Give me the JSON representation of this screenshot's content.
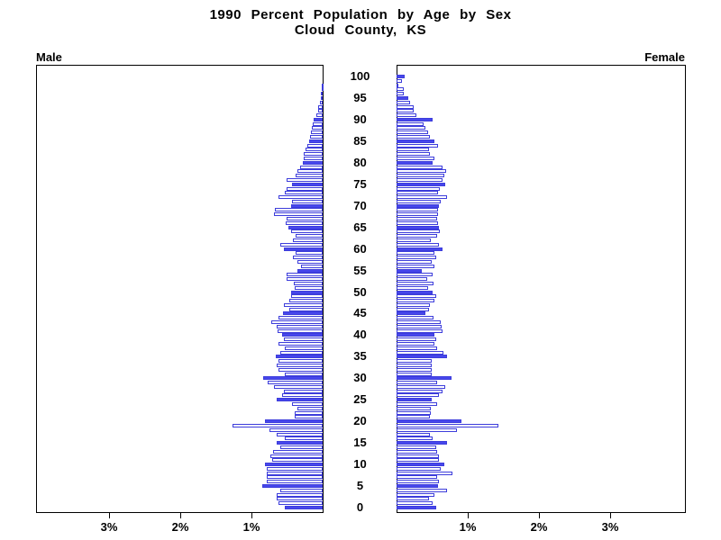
{
  "title": {
    "line1": "1990 Percent Population by Age by Sex",
    "line2": "Cloud County, KS"
  },
  "panels": {
    "male_label": "Male",
    "female_label": "Female"
  },
  "colors": {
    "bar_fill_blue": "#4747ec",
    "bar_outline_blue": "#3d3ddb",
    "axis_black": "#000000",
    "background": "#ffffff"
  },
  "chart_data": {
    "type": "bar",
    "subtype": "population_pyramid",
    "title": "1990 Percent Population by Age by Sex",
    "subtitle": "Cloud County, KS",
    "unit": "percent of total population",
    "left_series_name": "Male",
    "right_series_name": "Female",
    "age_min": 0,
    "age_max": 100,
    "age_tick_interval": 5,
    "age_tick_labels_top_to_bottom": [
      "100",
      "95",
      "90",
      "85",
      "80",
      "75",
      "70",
      "65",
      "60",
      "55",
      "50",
      "45",
      "40",
      "35",
      "30",
      "25",
      "20",
      "15",
      "10",
      "5",
      "0"
    ],
    "x_axis": {
      "male_tick_labels_left_to_right": [
        "3%",
        "2%",
        "1%"
      ],
      "female_tick_labels_left_to_right": [
        "1%",
        "2%",
        "3%"
      ],
      "tick_values_percent": [
        1,
        2,
        3
      ],
      "xlim_percent": [
        0,
        4.0
      ],
      "grid": false
    },
    "filled_bar_rule": "ages divisible by 5 are solid blue-filled; all other ages are white bars with blue outline",
    "male_percent_by_age_0_to_100": [
      0.53,
      0.62,
      0.64,
      0.65,
      0.59,
      0.85,
      0.78,
      0.79,
      0.78,
      0.79,
      0.81,
      0.71,
      0.73,
      0.7,
      0.59,
      0.65,
      0.53,
      0.64,
      0.75,
      1.27,
      0.81,
      0.39,
      0.39,
      0.36,
      0.43,
      0.64,
      0.57,
      0.55,
      0.68,
      0.77,
      0.83,
      0.53,
      0.62,
      0.64,
      0.62,
      0.66,
      0.59,
      0.53,
      0.62,
      0.55,
      0.57,
      0.63,
      0.65,
      0.72,
      0.62,
      0.56,
      0.47,
      0.54,
      0.47,
      0.44,
      0.44,
      0.39,
      0.41,
      0.5,
      0.5,
      0.36,
      0.3,
      0.35,
      0.42,
      0.38,
      0.55,
      0.59,
      0.42,
      0.38,
      0.44,
      0.48,
      0.52,
      0.51,
      0.68,
      0.67,
      0.44,
      0.43,
      0.62,
      0.53,
      0.51,
      0.43,
      0.51,
      0.38,
      0.36,
      0.32,
      0.28,
      0.27,
      0.26,
      0.24,
      0.21,
      0.19,
      0.18,
      0.16,
      0.15,
      0.14,
      0.13,
      0.09,
      0.06,
      0.06,
      0.04,
      0.03,
      0.02,
      0.01,
      0.01,
      0.0,
      0.0
    ],
    "female_percent_by_age_0_to_100": [
      0.56,
      0.5,
      0.45,
      0.53,
      0.71,
      0.58,
      0.6,
      0.57,
      0.78,
      0.62,
      0.67,
      0.59,
      0.6,
      0.57,
      0.56,
      0.71,
      0.51,
      0.47,
      0.85,
      1.43,
      0.91,
      0.47,
      0.48,
      0.48,
      0.57,
      0.49,
      0.6,
      0.65,
      0.68,
      0.57,
      0.77,
      0.49,
      0.49,
      0.49,
      0.49,
      0.71,
      0.66,
      0.57,
      0.53,
      0.56,
      0.53,
      0.64,
      0.63,
      0.62,
      0.52,
      0.4,
      0.46,
      0.47,
      0.53,
      0.56,
      0.51,
      0.44,
      0.52,
      0.43,
      0.51,
      0.36,
      0.53,
      0.49,
      0.56,
      0.53,
      0.65,
      0.6,
      0.48,
      0.57,
      0.61,
      0.6,
      0.58,
      0.57,
      0.58,
      0.58,
      0.6,
      0.62,
      0.71,
      0.58,
      0.61,
      0.68,
      0.65,
      0.67,
      0.7,
      0.64,
      0.51,
      0.53,
      0.47,
      0.46,
      0.58,
      0.53,
      0.47,
      0.44,
      0.41,
      0.38,
      0.51,
      0.28,
      0.24,
      0.24,
      0.19,
      0.17,
      0.1,
      0.1,
      0.03,
      0.07,
      0.12
    ]
  }
}
